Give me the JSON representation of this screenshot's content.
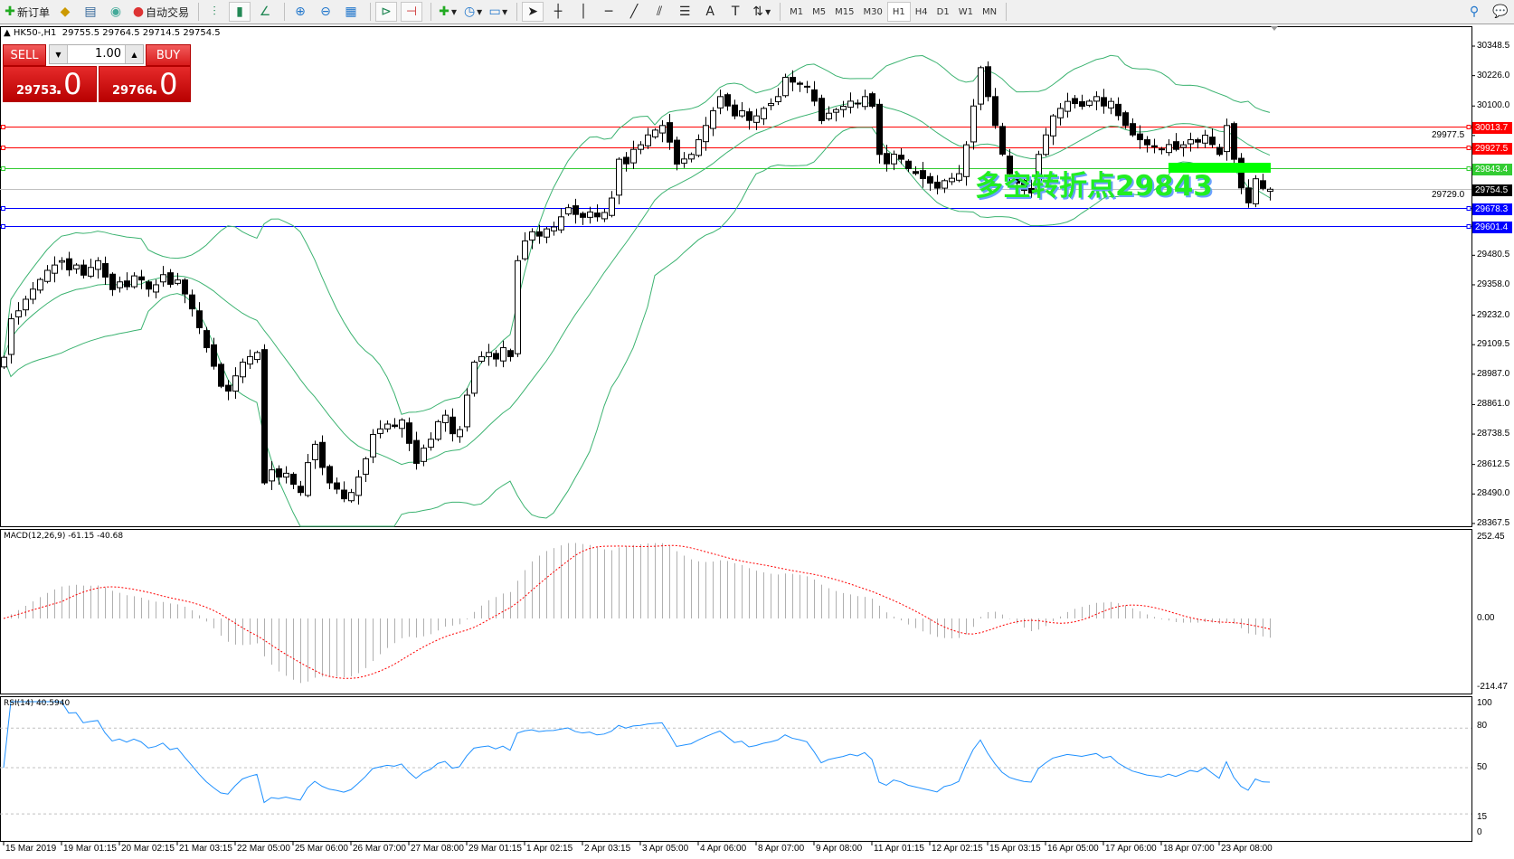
{
  "toolbar": {
    "new_order": "新订单",
    "auto_trading": "自动交易",
    "timeframes": [
      "M1",
      "M5",
      "M15",
      "M30",
      "H1",
      "H4",
      "D1",
      "W1",
      "MN"
    ],
    "active_timeframe": "H1"
  },
  "trade_panel": {
    "sell_label": "SELL",
    "buy_label": "BUY",
    "lot": "1.00",
    "sell_price_main": "29753",
    "sell_price_frac": ".0",
    "buy_price_main": "29766",
    "buy_price_frac": ".0"
  },
  "chart": {
    "symbol": "HK50-,H1",
    "ohlc": "29755.5 29764.5 29714.5 29754.5",
    "current_price": 29754.5,
    "current_price_label": "29754.5",
    "annotation": "多空转折点29843",
    "colors": {
      "bull": "#ffffff",
      "bear": "#000000",
      "bands": "#3cb371",
      "macd_hist": "#b0b0b0",
      "macd_signal": "#ff0000",
      "rsi": "#1e90ff"
    },
    "levels": [
      {
        "value": 30013.7,
        "label": "30013.7",
        "color": "#ff0000"
      },
      {
        "value": 29927.5,
        "label": "29927.5",
        "color": "#ff0000"
      },
      {
        "value": 29843.4,
        "label": "29843.4",
        "color": "#33cc33"
      },
      {
        "value": 29678.3,
        "label": "29678.3",
        "color": "#0000ff"
      },
      {
        "value": 29601.4,
        "label": "29601.4",
        "color": "#0000ff"
      }
    ],
    "price_axis": [
      "30348.5",
      "30226.0",
      "30100.0",
      "29977.5",
      "29729.0",
      "29480.5",
      "29358.0",
      "29232.0",
      "29109.5",
      "28987.0",
      "28861.0",
      "28738.5",
      "28612.5",
      "28490.0",
      "28367.5"
    ],
    "time_labels": [
      "15 Mar 2019",
      "19 Mar 01:15",
      "20 Mar 02:15",
      "21 Mar 03:15",
      "22 Mar 05:00",
      "25 Mar 06:00",
      "26 Mar 07:00",
      "27 Mar 08:00",
      "29 Mar 01:15",
      "1 Apr 02:15",
      "2 Apr 03:15",
      "3 Apr 05:00",
      "4 Apr 06:00",
      "8 Apr 07:00",
      "9 Apr 08:00",
      "11 Apr 01:15",
      "12 Apr 02:15",
      "15 Apr 03:15",
      "16 Apr 05:00",
      "17 Apr 06:00",
      "18 Apr 07:00",
      "23 Apr 08:00"
    ],
    "closes": [
      29057,
      29217,
      29250,
      29298,
      29340,
      29380,
      29418,
      29440,
      29458,
      29420,
      29440,
      29398,
      29430,
      29458,
      29390,
      29338,
      29370,
      29350,
      29395,
      29378,
      29340,
      29358,
      29400,
      29360,
      29378,
      29320,
      29258,
      29180,
      29097,
      29020,
      28937,
      28917,
      28980,
      29037,
      29060,
      29077,
      28536,
      28590,
      28560,
      28576,
      28530,
      28496,
      28620,
      28696,
      28600,
      28536,
      28510,
      28470,
      28496,
      28560,
      28636,
      28737,
      28760,
      28780,
      28770,
      28797,
      28700,
      28617,
      28680,
      28717,
      28790,
      28817,
      28740,
      28757,
      28900,
      29037,
      29060,
      29077,
      29050,
      29097,
      29060,
      29458,
      29540,
      29578,
      29560,
      29590,
      29598,
      29640,
      29678,
      29650,
      29638,
      29660,
      29640,
      29658,
      29718,
      29879,
      29860,
      29920,
      29939,
      29980,
      30000,
      30019,
      29950,
      29859,
      29880,
      29899,
      29960,
      30019,
      30080,
      30139,
      30100,
      30059,
      30080,
      30040,
      30059,
      30090,
      30110,
      30139,
      30219,
      30199,
      30190,
      30179,
      30120,
      30039,
      30070,
      30085,
      30099,
      30120,
      30110,
      30139,
      30099,
      29899,
      29860,
      29900,
      29879,
      29840,
      29820,
      29799,
      29780,
      29759,
      29790,
      29800,
      29819,
      29939,
      30100,
      30259,
      30139,
      30019,
      29900,
      29819,
      29780,
      29750,
      29739,
      29899,
      29980,
      30059,
      30090,
      30119,
      30110,
      30099,
      30120,
      30139,
      30100,
      30119,
      30060,
      30019,
      29980,
      29960,
      29939,
      29930,
      29919,
      29940,
      29920,
      29939,
      29960,
      29950,
      29979,
      29940,
      29899,
      30019,
      29879,
      29760,
      29698,
      29798,
      29758,
      29754.5
    ]
  },
  "macd": {
    "label": "MACD(12,26,9) -61.15 -40.68",
    "axis": [
      "252.45",
      "0.00",
      "-214.47"
    ]
  },
  "rsi": {
    "label": "RSI(14) 40.5940",
    "axis": [
      "100",
      "80",
      "50",
      "15",
      "0"
    ]
  }
}
